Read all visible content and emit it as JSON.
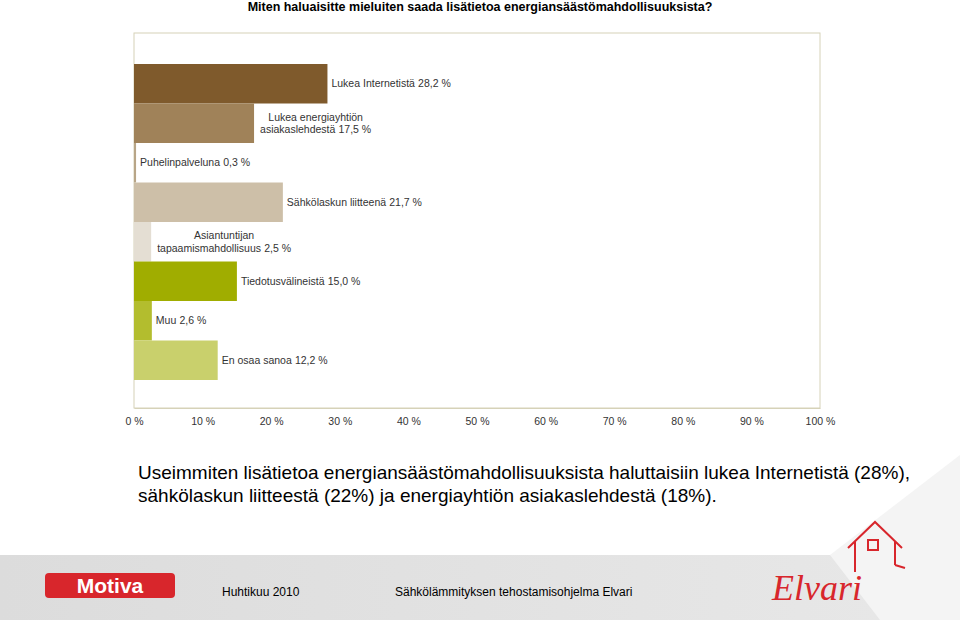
{
  "chart_data": {
    "type": "bar",
    "orientation": "horizontal",
    "title": "Miten haluaisitte mieluiten saada lisätietoa energiansäästömahdollisuuksista?",
    "categories": [
      "Lukea Internetistä",
      "Lukea energiayhtiön asiakaslehdestä",
      "Puhelinpalveluna",
      "Sähkölaskun liitteenä",
      "Asiantuntijan tapaamismahdollisuus",
      "Tiedotusvälineistä",
      "Muu",
      "En osaa sanoa"
    ],
    "values": [
      28.2,
      17.5,
      0.3,
      21.7,
      2.5,
      15.0,
      2.6,
      12.2
    ],
    "value_labels": [
      "28,2 %",
      "17,5 %",
      "0,3 %",
      "21,7 %",
      "2,5 %",
      "15,0 %",
      "2,6 %",
      "12,2 %"
    ],
    "colors": [
      "#7f5a2c",
      "#a08259",
      "#b8a587",
      "#cdbfa8",
      "#e4ded3",
      "#a0ad00",
      "#b3bd2e",
      "#c9d06c"
    ],
    "xlim": [
      0,
      100
    ],
    "xticks": [
      {
        "value": 0,
        "label": "0 %"
      },
      {
        "value": 10,
        "label": "10 %"
      },
      {
        "value": 20,
        "label": "20 %"
      },
      {
        "value": 30,
        "label": "30 %"
      },
      {
        "value": 40,
        "label": "40 %"
      },
      {
        "value": 50,
        "label": "50 %"
      },
      {
        "value": 60,
        "label": "60 %"
      },
      {
        "value": 70,
        "label": "70 %"
      },
      {
        "value": 80,
        "label": "80 %"
      },
      {
        "value": 90,
        "label": "90 %"
      },
      {
        "value": 100,
        "label": "100 %"
      }
    ],
    "grid": false,
    "data_labels": true,
    "tick_labels": "x"
  },
  "caption": [
    "Useimmiten lisätietoa energiansäästömahdollisuuksista haluttaisiin lukea Internetistä (28%),",
    "sähkölaskun liitteestä (22%) ja energiayhtiön asiakaslehdestä (18%)."
  ],
  "footer": {
    "logo": "Motiva",
    "date": "Huhtikuu 2010",
    "program": "Sähkölämmityksen tehostamisohjelma Elvari",
    "brand": "Elvari"
  }
}
